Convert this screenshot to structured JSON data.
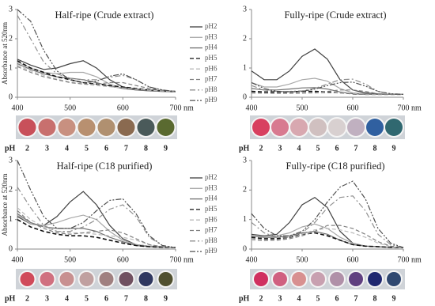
{
  "chart_data": [
    {
      "type": "line",
      "title": "Half-ripe (Crude extract)",
      "ylabel": "Absorbance at 520nm",
      "xlabel": "nm",
      "x": [
        400,
        425,
        450,
        475,
        500,
        525,
        550,
        575,
        600,
        625,
        650,
        675,
        700
      ],
      "xlim": [
        400,
        700
      ],
      "xticks": [
        400,
        500,
        600,
        700
      ],
      "ylim": [
        0,
        3
      ],
      "yticks": [
        0,
        1,
        2,
        3
      ],
      "legend": "right",
      "series": [
        {
          "name": "pH2",
          "color": "#404040",
          "style": "solid",
          "values": [
            1.3,
            1.1,
            0.95,
            1.0,
            1.15,
            1.25,
            1.0,
            0.6,
            0.35,
            0.28,
            0.25,
            0.22,
            0.2
          ]
        },
        {
          "name": "pH3",
          "color": "#a8a8a8",
          "style": "solid",
          "values": [
            1.2,
            1.0,
            0.85,
            0.8,
            0.85,
            0.85,
            0.7,
            0.45,
            0.3,
            0.25,
            0.22,
            0.2,
            0.18
          ]
        },
        {
          "name": "pH4",
          "color": "#707070",
          "style": "solid",
          "values": [
            1.15,
            0.95,
            0.8,
            0.7,
            0.65,
            0.6,
            0.5,
            0.38,
            0.3,
            0.25,
            0.22,
            0.2,
            0.18
          ]
        },
        {
          "name": "pH5",
          "color": "#111111",
          "style": "dashed",
          "values": [
            1.25,
            1.0,
            0.85,
            0.7,
            0.6,
            0.5,
            0.45,
            0.4,
            0.35,
            0.3,
            0.25,
            0.22,
            0.2
          ]
        },
        {
          "name": "pH6",
          "color": "#bbbbbb",
          "style": "dashed",
          "values": [
            1.1,
            0.9,
            0.75,
            0.62,
            0.52,
            0.45,
            0.4,
            0.36,
            0.32,
            0.28,
            0.24,
            0.21,
            0.19
          ]
        },
        {
          "name": "pH7",
          "color": "#808080",
          "style": "dashed",
          "values": [
            1.05,
            0.85,
            0.7,
            0.6,
            0.5,
            0.45,
            0.45,
            0.5,
            0.5,
            0.4,
            0.3,
            0.24,
            0.2
          ]
        },
        {
          "name": "pH8",
          "color": "#909090",
          "style": "dashdot",
          "values": [
            2.8,
            2.0,
            1.2,
            0.8,
            0.65,
            0.6,
            0.6,
            0.68,
            0.75,
            0.6,
            0.35,
            0.25,
            0.2
          ]
        },
        {
          "name": "pH9",
          "color": "#505050",
          "style": "dashdotdot",
          "values": [
            3.0,
            2.6,
            1.6,
            0.9,
            0.6,
            0.5,
            0.55,
            0.72,
            0.8,
            0.6,
            0.35,
            0.25,
            0.2
          ]
        }
      ],
      "strip": {
        "label": "pH",
        "categories": [
          2,
          3,
          4,
          5,
          6,
          7,
          8,
          9
        ],
        "colors": [
          "#c8505a",
          "#c8706e",
          "#c89080",
          "#b89070",
          "#b09070",
          "#8a6a50",
          "#4a5a5a",
          "#5a6a30"
        ]
      }
    },
    {
      "type": "line",
      "title": "Fully-ripe (Crude extract)",
      "xlabel": "nm",
      "x": [
        400,
        425,
        450,
        475,
        500,
        525,
        550,
        575,
        600,
        625,
        650,
        675,
        700
      ],
      "xlim": [
        400,
        700
      ],
      "xticks": [
        400,
        500,
        600,
        700
      ],
      "ylim": [
        0,
        3
      ],
      "yticks": [
        0,
        1,
        2,
        3
      ],
      "series": [
        {
          "color": "#404040",
          "style": "solid",
          "values": [
            0.9,
            0.6,
            0.6,
            0.9,
            1.4,
            1.65,
            1.3,
            0.6,
            0.25,
            0.15,
            0.12,
            0.1,
            0.1
          ]
        },
        {
          "color": "#a8a8a8",
          "style": "solid",
          "values": [
            0.5,
            0.35,
            0.35,
            0.45,
            0.6,
            0.65,
            0.55,
            0.3,
            0.15,
            0.12,
            0.1,
            0.1,
            0.1
          ]
        },
        {
          "color": "#707070",
          "style": "solid",
          "values": [
            0.3,
            0.25,
            0.25,
            0.28,
            0.32,
            0.33,
            0.28,
            0.18,
            0.12,
            0.1,
            0.1,
            0.1,
            0.1
          ]
        },
        {
          "color": "#111111",
          "style": "dashed",
          "values": [
            0.2,
            0.18,
            0.18,
            0.18,
            0.2,
            0.2,
            0.18,
            0.15,
            0.12,
            0.1,
            0.1,
            0.1,
            0.1
          ]
        },
        {
          "color": "#bbbbbb",
          "style": "dashed",
          "values": [
            0.15,
            0.15,
            0.14,
            0.14,
            0.14,
            0.15,
            0.15,
            0.15,
            0.13,
            0.1,
            0.1,
            0.1,
            0.1
          ]
        },
        {
          "color": "#808080",
          "style": "dashed",
          "values": [
            0.15,
            0.14,
            0.13,
            0.13,
            0.14,
            0.16,
            0.2,
            0.25,
            0.25,
            0.2,
            0.12,
            0.1,
            0.1
          ]
        },
        {
          "color": "#909090",
          "style": "dashdot",
          "values": [
            0.4,
            0.25,
            0.2,
            0.2,
            0.22,
            0.3,
            0.45,
            0.6,
            0.62,
            0.45,
            0.2,
            0.12,
            0.1
          ]
        },
        {
          "color": "#505050",
          "style": "dashdotdot",
          "values": [
            0.5,
            0.3,
            0.2,
            0.18,
            0.2,
            0.28,
            0.4,
            0.5,
            0.52,
            0.38,
            0.2,
            0.12,
            0.1
          ]
        }
      ],
      "strip": {
        "label": "pH",
        "categories": [
          2,
          3,
          4,
          5,
          6,
          7,
          8,
          9
        ],
        "colors": [
          "#d84060",
          "#d87a90",
          "#d8a8b0",
          "#d0c0c0",
          "#d8d0d0",
          "#c0b0c0",
          "#3060a0",
          "#306870"
        ]
      }
    },
    {
      "type": "line",
      "title": "Half-ripe (C18 purified)",
      "ylabel": "Absorbance at 520nm",
      "xlabel": "nm",
      "x": [
        400,
        425,
        450,
        475,
        500,
        525,
        550,
        575,
        600,
        625,
        650,
        675,
        700
      ],
      "xlim": [
        400,
        700
      ],
      "xticks": [
        400,
        500,
        600,
        700
      ],
      "ylim": [
        0,
        3
      ],
      "yticks": [
        0,
        1,
        2,
        3
      ],
      "legend": "right",
      "series": [
        {
          "name": "pH2",
          "color": "#404040",
          "style": "solid",
          "values": [
            1.1,
            0.85,
            0.8,
            1.1,
            1.6,
            1.95,
            1.5,
            0.8,
            0.35,
            0.15,
            0.1,
            0.08,
            0.05
          ]
        },
        {
          "name": "pH3",
          "color": "#a8a8a8",
          "style": "solid",
          "values": [
            1.15,
            0.85,
            0.8,
            0.9,
            1.05,
            1.15,
            1.0,
            0.6,
            0.3,
            0.15,
            0.1,
            0.08,
            0.05
          ]
        },
        {
          "name": "pH4",
          "color": "#707070",
          "style": "solid",
          "values": [
            1.2,
            0.9,
            0.75,
            0.7,
            0.7,
            0.7,
            0.6,
            0.4,
            0.25,
            0.12,
            0.08,
            0.06,
            0.05
          ]
        },
        {
          "name": "pH5",
          "color": "#111111",
          "style": "dashed",
          "values": [
            1.0,
            0.75,
            0.6,
            0.5,
            0.45,
            0.45,
            0.4,
            0.3,
            0.2,
            0.12,
            0.08,
            0.06,
            0.05
          ]
        },
        {
          "name": "pH6",
          "color": "#bbbbbb",
          "style": "dashed",
          "values": [
            1.4,
            1.0,
            0.75,
            0.6,
            0.55,
            0.55,
            0.5,
            0.45,
            0.4,
            0.3,
            0.15,
            0.08,
            0.05
          ]
        },
        {
          "name": "pH7",
          "color": "#808080",
          "style": "dashed",
          "values": [
            1.3,
            0.9,
            0.7,
            0.55,
            0.5,
            0.55,
            0.6,
            0.65,
            0.55,
            0.35,
            0.15,
            0.08,
            0.05
          ]
        },
        {
          "name": "pH8",
          "color": "#909090",
          "style": "dashdot",
          "values": [
            2.1,
            1.4,
            0.8,
            0.6,
            0.6,
            0.75,
            1.0,
            1.35,
            1.5,
            1.1,
            0.4,
            0.12,
            0.05
          ]
        },
        {
          "name": "pH9",
          "color": "#505050",
          "style": "dashdotdot",
          "values": [
            3.0,
            2.0,
            1.1,
            0.7,
            0.7,
            0.9,
            1.3,
            1.65,
            1.7,
            1.2,
            0.45,
            0.12,
            0.05
          ]
        }
      ],
      "strip": {
        "label": "pH",
        "categories": [
          2,
          3,
          4,
          5,
          6,
          7,
          8,
          9
        ],
        "colors": [
          "#d04a5a",
          "#d07080",
          "#c89090",
          "#c0a0a0",
          "#a08080",
          "#705060",
          "#303860",
          "#505030"
        ]
      }
    },
    {
      "type": "line",
      "title": "Fully-ripe (C18 purified)",
      "xlabel": "nm",
      "x": [
        400,
        425,
        450,
        475,
        500,
        525,
        550,
        575,
        600,
        625,
        650,
        675,
        700
      ],
      "xlim": [
        400,
        700
      ],
      "xticks": [
        400,
        500,
        600,
        700
      ],
      "ylim": [
        0,
        3
      ],
      "yticks": [
        0,
        1,
        2,
        3
      ],
      "series": [
        {
          "color": "#404040",
          "style": "solid",
          "values": [
            0.5,
            0.45,
            0.5,
            0.9,
            1.5,
            1.75,
            1.4,
            0.6,
            0.2,
            0.1,
            0.08,
            0.06,
            0.05
          ]
        },
        {
          "color": "#a8a8a8",
          "style": "solid",
          "values": [
            0.45,
            0.4,
            0.45,
            0.55,
            0.75,
            0.85,
            0.7,
            0.4,
            0.2,
            0.1,
            0.08,
            0.06,
            0.05
          ]
        },
        {
          "color": "#707070",
          "style": "solid",
          "values": [
            0.45,
            0.4,
            0.4,
            0.45,
            0.55,
            0.6,
            0.5,
            0.3,
            0.15,
            0.1,
            0.08,
            0.06,
            0.05
          ]
        },
        {
          "color": "#111111",
          "style": "dashed",
          "values": [
            0.4,
            0.35,
            0.35,
            0.4,
            0.5,
            0.55,
            0.45,
            0.3,
            0.15,
            0.1,
            0.08,
            0.06,
            0.05
          ]
        },
        {
          "color": "#bbbbbb",
          "style": "dashed",
          "values": [
            0.3,
            0.28,
            0.3,
            0.35,
            0.5,
            0.65,
            0.7,
            0.65,
            0.55,
            0.4,
            0.2,
            0.08,
            0.05
          ]
        },
        {
          "color": "#808080",
          "style": "dashed",
          "values": [
            0.35,
            0.3,
            0.3,
            0.35,
            0.45,
            0.6,
            0.8,
            0.8,
            0.7,
            0.5,
            0.25,
            0.1,
            0.05
          ]
        },
        {
          "color": "#909090",
          "style": "dashdot",
          "values": [
            0.9,
            0.55,
            0.4,
            0.4,
            0.55,
            0.9,
            1.4,
            1.75,
            1.8,
            1.3,
            0.5,
            0.15,
            0.05
          ]
        },
        {
          "color": "#505050",
          "style": "dashdotdot",
          "values": [
            1.2,
            0.7,
            0.45,
            0.45,
            0.6,
            1.0,
            1.6,
            2.1,
            2.3,
            1.7,
            0.7,
            0.2,
            0.05
          ]
        }
      ],
      "strip": {
        "label": "pH",
        "categories": [
          2,
          3,
          4,
          5,
          6,
          7,
          8,
          9
        ],
        "colors": [
          "#d03060",
          "#d06080",
          "#d89090",
          "#c8a0b0",
          "#b090a8",
          "#604080",
          "#202870",
          "#304870"
        ]
      }
    }
  ]
}
